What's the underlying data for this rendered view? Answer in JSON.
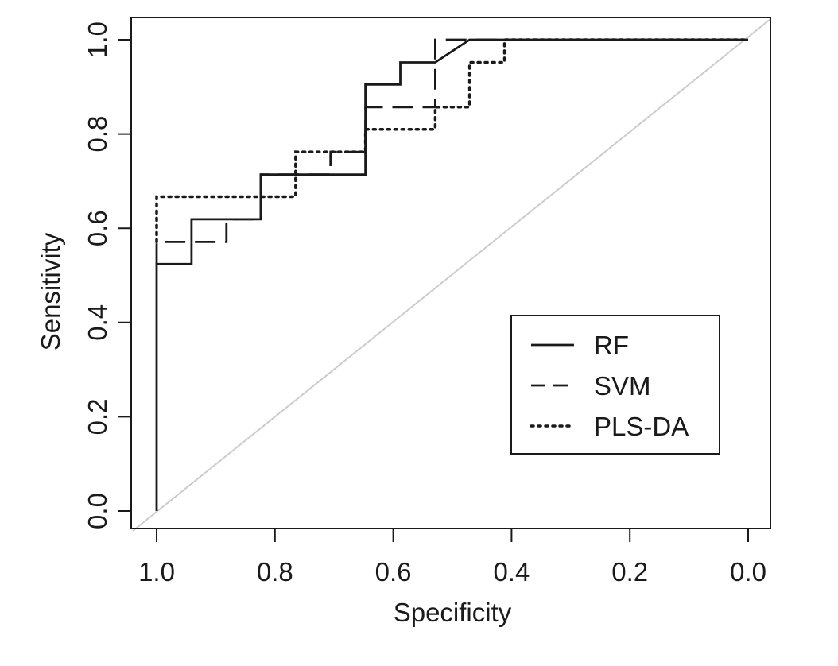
{
  "chart_data": {
    "type": "line",
    "title": "",
    "xlabel": "Specificity",
    "ylabel": "Sensitivity",
    "xlim": [
      1.0,
      0.0
    ],
    "ylim": [
      0.0,
      1.0
    ],
    "x_reversed": true,
    "xticks": [
      "1.0",
      "0.8",
      "0.6",
      "0.4",
      "0.2",
      "0.0"
    ],
    "yticks": [
      "0.0",
      "0.2",
      "0.4",
      "0.6",
      "0.8",
      "1.0"
    ],
    "grid": false,
    "legend_position": "bottom-right",
    "reference_line": {
      "from": [
        1.0,
        0.0
      ],
      "to": [
        0.0,
        1.0
      ],
      "color": "#cccccc"
    },
    "series": [
      {
        "name": "RF",
        "style": "solid",
        "color": "#1a1a1a",
        "x": [
          1.0,
          1.0,
          0.941,
          0.941,
          0.824,
          0.824,
          0.647,
          0.647,
          0.588,
          0.588,
          0.529,
          0.471,
          0.0
        ],
        "y": [
          0.0,
          0.524,
          0.524,
          0.619,
          0.619,
          0.714,
          0.714,
          0.905,
          0.905,
          0.952,
          0.952,
          1.0,
          1.0
        ]
      },
      {
        "name": "SVM",
        "style": "dashed",
        "color": "#1a1a1a",
        "x": [
          1.0,
          1.0,
          0.882,
          0.882,
          0.824,
          0.824,
          0.706,
          0.706,
          0.647,
          0.647,
          0.529,
          0.529,
          0.0
        ],
        "y": [
          0.524,
          0.571,
          0.571,
          0.619,
          0.619,
          0.714,
          0.714,
          0.762,
          0.762,
          0.857,
          0.857,
          1.0,
          1.0
        ]
      },
      {
        "name": "PLS-DA",
        "style": "dotted",
        "color": "#1a1a1a",
        "x": [
          1.0,
          1.0,
          0.765,
          0.765,
          0.647,
          0.647,
          0.529,
          0.529,
          0.471,
          0.471,
          0.412,
          0.412,
          0.0
        ],
        "y": [
          0.571,
          0.667,
          0.667,
          0.762,
          0.762,
          0.81,
          0.81,
          0.857,
          0.857,
          0.952,
          0.952,
          1.0,
          1.0
        ]
      }
    ]
  }
}
